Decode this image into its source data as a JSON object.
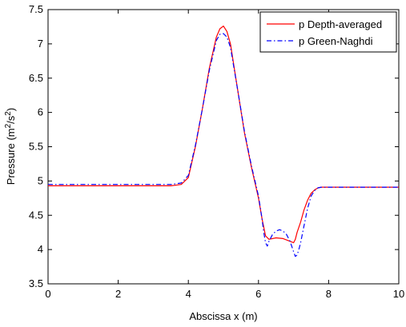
{
  "chart_data": {
    "type": "line",
    "xlabel": "Abscissa x (m)",
    "ylabel": "Pressure (m²/s²)",
    "ylabel_parts": {
      "base": "Pressure (m",
      "sup1": "2",
      "mid": "/s",
      "sup2": "2",
      "end": ")"
    },
    "xlim": [
      0,
      10
    ],
    "ylim": [
      3.5,
      7.5
    ],
    "x_ticks": [
      0,
      2,
      4,
      6,
      8,
      10
    ],
    "y_ticks": [
      3.5,
      4,
      4.5,
      5,
      5.5,
      6,
      6.5,
      7,
      7.5
    ],
    "x_tick_labels": [
      "0",
      "2",
      "4",
      "6",
      "8",
      "10"
    ],
    "y_tick_labels": [
      "3.5",
      "4",
      "4.5",
      "5",
      "5.5",
      "6",
      "6.5",
      "7",
      "7.5"
    ],
    "grid": false,
    "legend_position": "top-right",
    "series": [
      {
        "name": "p Depth-averaged",
        "color": "#ff0000",
        "dash": "solid",
        "x": [
          0,
          3.5,
          3.8,
          4.0,
          4.2,
          4.4,
          4.6,
          4.8,
          4.9,
          5.0,
          5.1,
          5.2,
          5.4,
          5.6,
          5.8,
          6.0,
          6.1,
          6.2,
          6.3,
          6.5,
          6.7,
          6.9,
          7.0,
          7.05,
          7.1,
          7.2,
          7.3,
          7.4,
          7.5,
          7.6,
          7.7,
          7.8,
          8.0,
          10
        ],
        "y": [
          4.93,
          4.93,
          4.95,
          5.05,
          5.5,
          6.05,
          6.65,
          7.1,
          7.22,
          7.26,
          7.18,
          7.0,
          6.35,
          5.7,
          5.2,
          4.75,
          4.45,
          4.2,
          4.15,
          4.17,
          4.16,
          4.12,
          4.1,
          4.15,
          4.25,
          4.4,
          4.58,
          4.72,
          4.82,
          4.87,
          4.9,
          4.91,
          4.91,
          4.91
        ]
      },
      {
        "name": "p Green-Naghdi",
        "color": "#0000ff",
        "dash": "dashdot",
        "x": [
          0,
          3.5,
          3.8,
          4.0,
          4.2,
          4.4,
          4.6,
          4.8,
          4.9,
          5.0,
          5.1,
          5.2,
          5.4,
          5.6,
          5.8,
          6.0,
          6.1,
          6.15,
          6.2,
          6.25,
          6.3,
          6.4,
          6.5,
          6.6,
          6.7,
          6.8,
          6.9,
          7.0,
          7.05,
          7.1,
          7.15,
          7.2,
          7.3,
          7.4,
          7.5,
          7.6,
          7.7,
          7.8,
          8.0,
          10
        ],
        "y": [
          4.95,
          4.95,
          4.97,
          5.08,
          5.52,
          6.05,
          6.62,
          7.05,
          7.14,
          7.15,
          7.1,
          6.95,
          6.35,
          5.72,
          5.22,
          4.78,
          4.45,
          4.25,
          4.1,
          4.05,
          4.12,
          4.22,
          4.27,
          4.29,
          4.27,
          4.22,
          4.12,
          3.97,
          3.9,
          3.92,
          4.0,
          4.1,
          4.35,
          4.6,
          4.78,
          4.86,
          4.9,
          4.91,
          4.91,
          4.91
        ]
      }
    ]
  }
}
